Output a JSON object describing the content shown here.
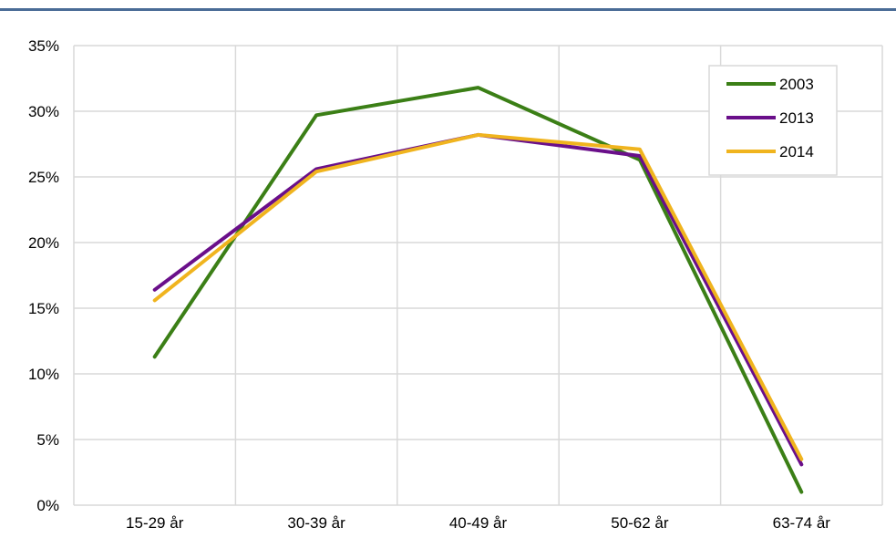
{
  "chart_data": {
    "type": "line",
    "title": "",
    "xlabel": "",
    "ylabel": "",
    "categories": [
      "15-29 år",
      "30-39 år",
      "40-49 år",
      "50-62 år",
      "63-74 år"
    ],
    "ylim": [
      0,
      35
    ],
    "yticks": [
      "0%",
      "5%",
      "10%",
      "15%",
      "20%",
      "25%",
      "30%",
      "35%"
    ],
    "yticks_values": [
      0,
      5,
      10,
      15,
      20,
      25,
      30,
      35
    ],
    "grid": true,
    "legend_position": "top-right",
    "series": [
      {
        "name": "2003",
        "color": "#3b7f16",
        "values": [
          11.3,
          29.7,
          31.8,
          26.3,
          1.0
        ]
      },
      {
        "name": "2013",
        "color": "#6a0f8a",
        "values": [
          16.4,
          25.6,
          28.2,
          26.6,
          3.1
        ]
      },
      {
        "name": "2014",
        "color": "#f0b41e",
        "values": [
          15.6,
          25.4,
          28.2,
          27.1,
          3.5
        ]
      }
    ]
  }
}
